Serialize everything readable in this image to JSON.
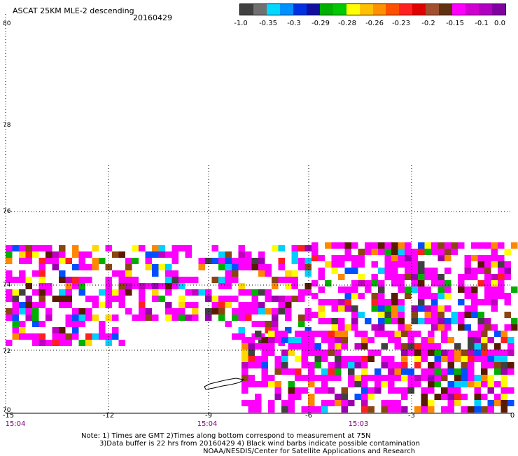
{
  "header": {
    "title": "ASCAT 25KM MLE-2 descending",
    "date": "20160429"
  },
  "colorbar": {
    "colors": [
      "#404040",
      "#707070",
      "#00d8ff",
      "#0090ff",
      "#0030e0",
      "#1010a0",
      "#00b000",
      "#00c800",
      "#ffff00",
      "#ffc000",
      "#ff9000",
      "#ff5000",
      "#ff2020",
      "#e00000",
      "#a05030",
      "#603010",
      "#ff00ff",
      "#d000d0",
      "#b000c0",
      "#8000a0"
    ],
    "labels": [
      "-1.0",
      "-0.35",
      "-0.3",
      "-0.29",
      "-0.28",
      "-0.26",
      "-0.23",
      "-0.2",
      "-0.15",
      "-0.1",
      "0.0"
    ]
  },
  "axes": {
    "y_labels": [
      "80",
      "78",
      "76",
      "74",
      "72",
      "70"
    ],
    "x_labels": [
      "-15",
      "-12",
      "-9",
      "-6",
      "-3",
      "0"
    ],
    "time_labels": [
      "15:04",
      "15:04",
      "15:03"
    ]
  },
  "notes": {
    "line1": "Note: 1) Times are GMT 2)Times along bottom correspond to measurement at 75N",
    "line2": "3)Data buffer is 22 hrs from 20160429 4) Black wind barbs indicate possible contamination",
    "line3": "NOAA/NESDIS/Center for Satellite Applications and Research"
  },
  "palette": [
    "#ff00ff",
    "#c000c0",
    "#9a00b0",
    "#ff2020",
    "#ff8800",
    "#ffd800",
    "#ffff00",
    "#00b000",
    "#0050ff",
    "#00d0ff",
    "#8b4513",
    "#5a1a00",
    "#404040"
  ]
}
